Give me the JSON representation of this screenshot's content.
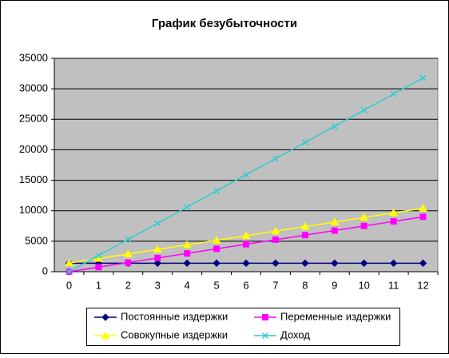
{
  "chart_data": {
    "type": "line",
    "title": "График безубыточности",
    "categories": [
      "0",
      "1",
      "2",
      "3",
      "4",
      "5",
      "6",
      "7",
      "8",
      "9",
      "10",
      "11",
      "12"
    ],
    "series": [
      {
        "name": "Постоянные издержки",
        "color": "#000080",
        "marker": "diamond",
        "values": [
          1400,
          1400,
          1400,
          1400,
          1400,
          1400,
          1400,
          1400,
          1400,
          1400,
          1400,
          1400,
          1400
        ]
      },
      {
        "name": "Переменные издержки",
        "color": "#ff00ff",
        "marker": "square",
        "values": [
          0,
          750,
          1500,
          2250,
          3000,
          3750,
          4500,
          5250,
          6000,
          6750,
          7500,
          8250,
          9000
        ]
      },
      {
        "name": "Совокупные издержки",
        "color": "#ffff00",
        "marker": "triangle",
        "values": [
          1400,
          2150,
          2900,
          3650,
          4400,
          5150,
          5900,
          6650,
          7400,
          8150,
          8900,
          9650,
          10400
        ]
      },
      {
        "name": "Доход",
        "color": "#33cccc",
        "marker": "cross",
        "values": [
          0,
          2650,
          5300,
          7950,
          10600,
          13250,
          15900,
          18550,
          21200,
          23850,
          26500,
          29150,
          31800
        ]
      }
    ],
    "ylim": [
      0,
      35000
    ],
    "yticks": [
      0,
      5000,
      10000,
      15000,
      20000,
      25000,
      30000,
      35000
    ],
    "grid": true,
    "legend": "bottom"
  }
}
